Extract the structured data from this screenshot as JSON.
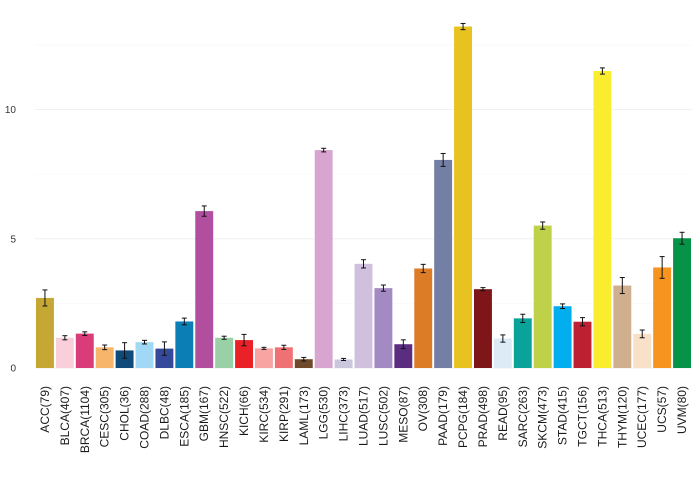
{
  "chart_data": {
    "type": "bar",
    "title": "",
    "xlabel": "",
    "ylabel": "",
    "ylim": [
      0,
      13.85
    ],
    "yticks": [
      0,
      5,
      10
    ],
    "grid": true,
    "legend": "none",
    "categories": [
      "ACC(79)",
      "BLCA(407)",
      "BRCA(1104)",
      "CESC(305)",
      "CHOL(36)",
      "COAD(288)",
      "DLBC(48)",
      "ESCA(185)",
      "GBM(167)",
      "HNSC(522)",
      "KICH(66)",
      "KIRC(534)",
      "KIRP(291)",
      "LAML(173)",
      "LGG(530)",
      "LIHC(373)",
      "LUAD(517)",
      "LUSC(502)",
      "MESO(87)",
      "OV(308)",
      "PAAD(179)",
      "PCPG(184)",
      "PRAD(498)",
      "READ(95)",
      "SARC(263)",
      "SKCM(473)",
      "STAD(415)",
      "TGCT(156)",
      "THCA(513)",
      "THYM(120)",
      "UCEC(177)",
      "UCS(57)",
      "UVM(80)"
    ],
    "values": [
      2.71,
      1.17,
      1.33,
      0.8,
      0.68,
      1.0,
      0.75,
      1.8,
      6.07,
      1.17,
      1.08,
      0.76,
      0.8,
      0.34,
      8.43,
      0.33,
      4.03,
      3.09,
      0.92,
      3.85,
      8.05,
      13.21,
      3.05,
      1.14,
      1.92,
      5.51,
      2.39,
      1.79,
      11.49,
      3.19,
      1.32,
      3.89,
      5.02
    ],
    "errors": [
      0.31,
      0.08,
      0.07,
      0.09,
      0.3,
      0.07,
      0.26,
      0.13,
      0.2,
      0.06,
      0.22,
      0.04,
      0.08,
      0.07,
      0.07,
      0.04,
      0.16,
      0.12,
      0.17,
      0.16,
      0.25,
      0.12,
      0.06,
      0.14,
      0.16,
      0.14,
      0.09,
      0.16,
      0.12,
      0.31,
      0.15,
      0.42,
      0.23
    ],
    "colors": [
      "#C5A733",
      "#F9CFDB",
      "#DA3B79",
      "#F7B56B",
      "#104A7B",
      "#A1D8F5",
      "#35499B",
      "#0B7EB5",
      "#B14F9E",
      "#99D0A5",
      "#EA2227",
      "#F7A4A3",
      "#EF7174",
      "#6E4A2B",
      "#D7A5CF",
      "#CAC7DC",
      "#D0C0DE",
      "#A48AC3",
      "#5B2D80",
      "#DD7C26",
      "#737FA5",
      "#E8C21F",
      "#7E1518",
      "#DCEBF6",
      "#0AA39A",
      "#BFD149",
      "#03AEEF",
      "#BD2131",
      "#FAEC2F",
      "#D0AF8F",
      "#F9E1C7",
      "#F7941F",
      "#069247"
    ]
  }
}
